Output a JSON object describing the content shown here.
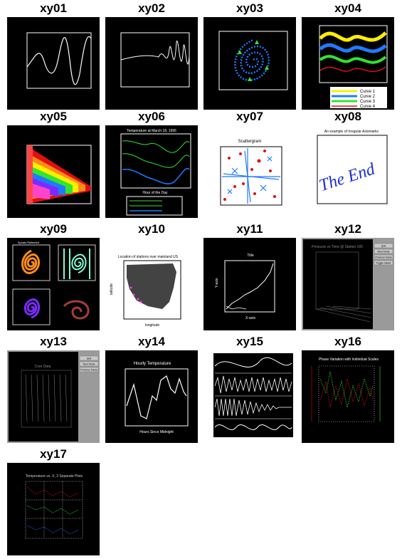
{
  "gallery": {
    "items": [
      {
        "title": "xy01"
      },
      {
        "title": "xy02"
      },
      {
        "title": "xy03"
      },
      {
        "title": "xy04"
      },
      {
        "title": "xy05"
      },
      {
        "title": "xy06"
      },
      {
        "title": "xy07"
      },
      {
        "title": "xy08"
      },
      {
        "title": "xy09"
      },
      {
        "title": "xy10"
      },
      {
        "title": "xy11"
      },
      {
        "title": "xy12"
      },
      {
        "title": "xy13"
      },
      {
        "title": "xy14"
      },
      {
        "title": "xy15"
      },
      {
        "title": "xy16"
      },
      {
        "title": "xy17"
      }
    ]
  },
  "thumbs": {
    "xy04_legend": [
      "Curve 1",
      "Curve 2",
      "Curve 3",
      "Curve 4"
    ],
    "xy06_title": "Temperature at March 18, 1995",
    "xy06_xlabel": "Hour of the Day",
    "xy07_title": "Scattergram",
    "xy08_title": "An example of Irregular Axismarks",
    "xy08_signature": "The End",
    "xy09_title": "Spirals Reflected",
    "xy10_title": "Location of stations over mainland US",
    "xy10_xlabel": "longitude",
    "xy10_ylabel": "latitude",
    "xy11_title": "Title",
    "xy11_ylabel": "Y-axis",
    "xy11_xlabel": "X-axis",
    "xy12_title": "Pressure vs Time @ Station 165",
    "xy12_buttons": [
      "Quit",
      "Next frame",
      "Previous frame",
      "Toggle labels"
    ],
    "xy13_title": "Core Data",
    "xy13_buttons": [
      "Quit",
      "Next frame",
      "Previous frame"
    ],
    "xy14_title": "Hourly Temperature",
    "xy14_xlabel": "Hours Since Midnight",
    "xy16_title": "Phase Variation with Individual Scales",
    "xy17_title": "Temperature vs. X, 3 Separate Plots",
    "colors": {
      "curve_blue": "#1e7bff",
      "curve_green": "#2fe52f",
      "curve_yellow": "#ffee00",
      "curve_red": "#e01010",
      "orange": "#ff8c1a",
      "purple": "#7a2cff",
      "brick": "#a83a3a"
    }
  }
}
